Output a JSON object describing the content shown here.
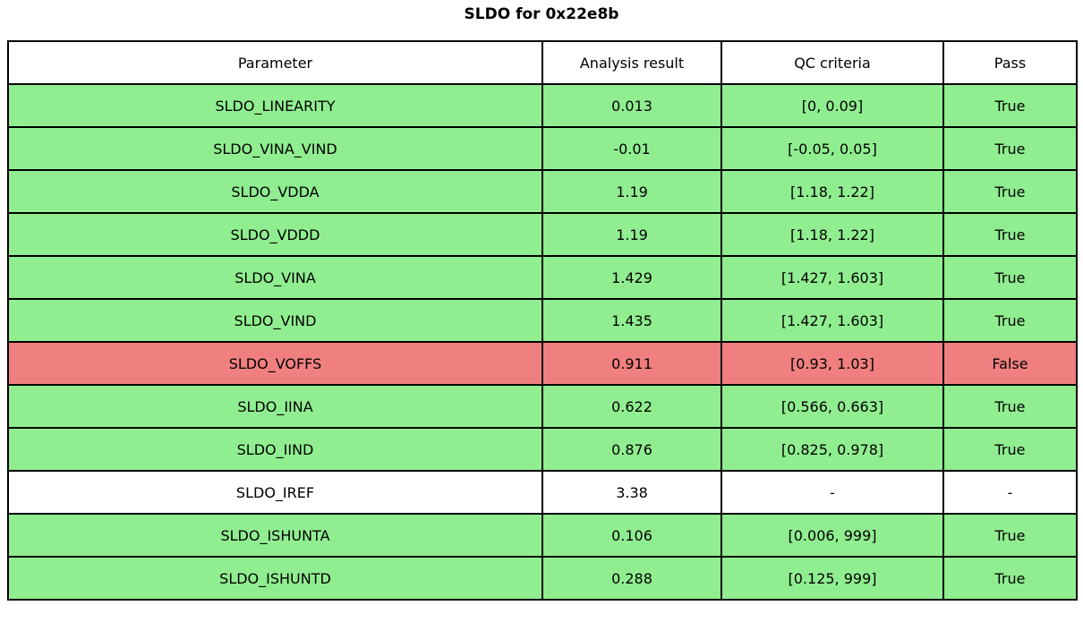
{
  "title": "SLDO for 0x22e8b",
  "colors": {
    "pass": "#90ee90",
    "fail": "#f08080",
    "neutral": "#ffffff",
    "border": "#000000",
    "text": "#000000"
  },
  "table": {
    "headers": [
      "Parameter",
      "Analysis result",
      "QC criteria",
      "Pass"
    ],
    "rows": [
      {
        "parameter": "SLDO_LINEARITY",
        "result": "0.013",
        "criteria": "[0, 0.09]",
        "pass": "True",
        "status": "pass"
      },
      {
        "parameter": "SLDO_VINA_VIND",
        "result": "-0.01",
        "criteria": "[-0.05, 0.05]",
        "pass": "True",
        "status": "pass"
      },
      {
        "parameter": "SLDO_VDDA",
        "result": "1.19",
        "criteria": "[1.18, 1.22]",
        "pass": "True",
        "status": "pass"
      },
      {
        "parameter": "SLDO_VDDD",
        "result": "1.19",
        "criteria": "[1.18, 1.22]",
        "pass": "True",
        "status": "pass"
      },
      {
        "parameter": "SLDO_VINA",
        "result": "1.429",
        "criteria": "[1.427, 1.603]",
        "pass": "True",
        "status": "pass"
      },
      {
        "parameter": "SLDO_VIND",
        "result": "1.435",
        "criteria": "[1.427, 1.603]",
        "pass": "True",
        "status": "pass"
      },
      {
        "parameter": "SLDO_VOFFS",
        "result": "0.911",
        "criteria": "[0.93, 1.03]",
        "pass": "False",
        "status": "fail"
      },
      {
        "parameter": "SLDO_IINA",
        "result": "0.622",
        "criteria": "[0.566, 0.663]",
        "pass": "True",
        "status": "pass"
      },
      {
        "parameter": "SLDO_IIND",
        "result": "0.876",
        "criteria": "[0.825, 0.978]",
        "pass": "True",
        "status": "pass"
      },
      {
        "parameter": "SLDO_IREF",
        "result": "3.38",
        "criteria": "-",
        "pass": "-",
        "status": "neutral"
      },
      {
        "parameter": "SLDO_ISHUNTA",
        "result": "0.106",
        "criteria": "[0.006, 999]",
        "pass": "True",
        "status": "pass"
      },
      {
        "parameter": "SLDO_ISHUNTD",
        "result": "0.288",
        "criteria": "[0.125, 999]",
        "pass": "True",
        "status": "pass"
      }
    ]
  },
  "chart_data": {
    "type": "table",
    "title": "SLDO for 0x22e8b",
    "columns": [
      "Parameter",
      "Analysis result",
      "QC criteria",
      "Pass"
    ],
    "rows": [
      [
        "SLDO_LINEARITY",
        0.013,
        "[0, 0.09]",
        true
      ],
      [
        "SLDO_VINA_VIND",
        -0.01,
        "[-0.05, 0.05]",
        true
      ],
      [
        "SLDO_VDDA",
        1.19,
        "[1.18, 1.22]",
        true
      ],
      [
        "SLDO_VDDD",
        1.19,
        "[1.18, 1.22]",
        true
      ],
      [
        "SLDO_VINA",
        1.429,
        "[1.427, 1.603]",
        true
      ],
      [
        "SLDO_VIND",
        1.435,
        "[1.427, 1.603]",
        true
      ],
      [
        "SLDO_VOFFS",
        0.911,
        "[0.93, 1.03]",
        false
      ],
      [
        "SLDO_IINA",
        0.622,
        "[0.566, 0.663]",
        true
      ],
      [
        "SLDO_IIND",
        0.876,
        "[0.825, 0.978]",
        true
      ],
      [
        "SLDO_IREF",
        3.38,
        null,
        null
      ],
      [
        "SLDO_ISHUNTA",
        0.106,
        "[0.006, 999]",
        true
      ],
      [
        "SLDO_ISHUNTD",
        0.288,
        "[0.125, 999]",
        true
      ]
    ],
    "layout_hints": {
      "row_color_pass": "#90ee90",
      "row_color_fail": "#f08080",
      "row_color_neutral": "#ffffff",
      "header_background": "#ffffff",
      "grid": true
    }
  }
}
